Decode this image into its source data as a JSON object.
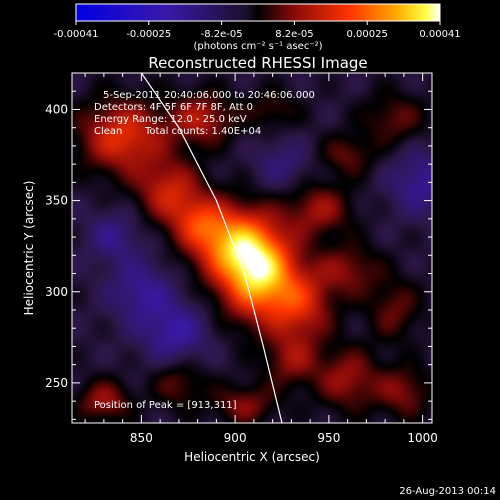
{
  "chart_data": {
    "type": "heatmap",
    "title": "Reconstructed RHESSI Image",
    "colorbar": {
      "ticks": [
        "-0.00041",
        "-0.00025",
        "-8.2e-05",
        "8.2e-05",
        "0.00025",
        "0.00041"
      ],
      "range": [
        -0.00041,
        0.00041
      ],
      "unit_label": "(photons cm⁻² s⁻¹ asec⁻²)",
      "colormap": "blue-purple-red-yellow-white"
    },
    "annotations": {
      "time_range": "5-Sep-2011 20:40:06.000 to 20:46:06.000",
      "detectors": "Detectors: 4F 5F 6F 7F 8F, Att 0",
      "energy": "Energy Range: 12.0 - 25.0 keV",
      "clean": "Clean",
      "total_counts": "Total counts: 1.40E+04",
      "peak": "Position of Peak = [913,311]"
    },
    "xlabel": "Heliocentric X (arcsec)",
    "ylabel": "Heliocentric Y (arcsec)",
    "xlim": [
      813,
      1005
    ],
    "ylim": [
      228,
      420
    ],
    "xticks": [
      "850",
      "900",
      "950",
      "1000"
    ],
    "xtick_values": [
      850,
      900,
      950,
      1000
    ],
    "yticks": [
      "250",
      "300",
      "350",
      "400"
    ],
    "ytick_values": [
      250,
      300,
      350,
      400
    ],
    "peak": {
      "x": 913,
      "y": 311
    },
    "limb_curve": [
      [
        850,
        420
      ],
      [
        870,
        390
      ],
      [
        890,
        350
      ],
      [
        905,
        310
      ],
      [
        915,
        270
      ],
      [
        925,
        228
      ]
    ],
    "sources": [
      {
        "x": 912,
        "y": 312,
        "amp": 1.0,
        "sx": 14,
        "sy": 18
      },
      {
        "x": 895,
        "y": 328,
        "amp": 0.55,
        "sx": 14,
        "sy": 14
      },
      {
        "x": 935,
        "y": 292,
        "amp": 0.45,
        "sx": 12,
        "sy": 14
      },
      {
        "x": 840,
        "y": 385,
        "amp": 0.55,
        "sx": 16,
        "sy": 14
      },
      {
        "x": 865,
        "y": 355,
        "amp": 0.45,
        "sx": 12,
        "sy": 12
      },
      {
        "x": 880,
        "y": 338,
        "amp": 0.35,
        "sx": 10,
        "sy": 10
      },
      {
        "x": 882,
        "y": 395,
        "amp": 0.4,
        "sx": 12,
        "sy": 10
      },
      {
        "x": 945,
        "y": 345,
        "amp": 0.35,
        "sx": 12,
        "sy": 10
      },
      {
        "x": 960,
        "y": 312,
        "amp": 0.3,
        "sx": 12,
        "sy": 10
      },
      {
        "x": 985,
        "y": 290,
        "amp": 0.25,
        "sx": 10,
        "sy": 12
      },
      {
        "x": 960,
        "y": 252,
        "amp": 0.35,
        "sx": 12,
        "sy": 12
      },
      {
        "x": 990,
        "y": 245,
        "amp": 0.3,
        "sx": 10,
        "sy": 10
      },
      {
        "x": 930,
        "y": 262,
        "amp": 0.3,
        "sx": 10,
        "sy": 10
      },
      {
        "x": 870,
        "y": 250,
        "amp": 0.25,
        "sx": 10,
        "sy": 10
      },
      {
        "x": 830,
        "y": 240,
        "amp": 0.35,
        "sx": 10,
        "sy": 8
      },
      {
        "x": 905,
        "y": 238,
        "amp": 0.3,
        "sx": 12,
        "sy": 8
      },
      {
        "x": 985,
        "y": 395,
        "amp": 0.25,
        "sx": 12,
        "sy": 10
      },
      {
        "x": 960,
        "y": 375,
        "amp": 0.25,
        "sx": 10,
        "sy": 8
      },
      {
        "x": 920,
        "y": 400,
        "amp": 0.2,
        "sx": 10,
        "sy": 8
      },
      {
        "x": 868,
        "y": 277,
        "amp": -0.35,
        "sx": 12,
        "sy": 12
      },
      {
        "x": 850,
        "y": 300,
        "amp": -0.3,
        "sx": 12,
        "sy": 12
      },
      {
        "x": 1000,
        "y": 360,
        "amp": -0.3,
        "sx": 12,
        "sy": 12
      },
      {
        "x": 925,
        "y": 370,
        "amp": -0.2,
        "sx": 10,
        "sy": 10
      },
      {
        "x": 835,
        "y": 330,
        "amp": -0.25,
        "sx": 10,
        "sy": 10
      }
    ]
  },
  "footer": {
    "timestamp": "26-Aug-2013 00:14"
  }
}
